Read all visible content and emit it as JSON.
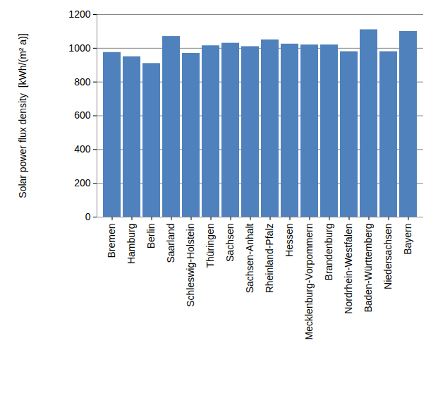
{
  "chart_data": {
    "type": "bar",
    "y_label": "Solar power flux density  [kWh/(m² a)]",
    "categories": [
      "Bremen",
      "Hamburg",
      "Berlin",
      "Saarland",
      "Schleswig-Holstein",
      "Thüringen",
      "Sachsen",
      "Sachsen-Anhalt",
      "Rheinland-Pfalz",
      "Hessen",
      "Mecklenburg-Vorpommern",
      "Brandenburg",
      "Nordrhein-Westfalen",
      "Baden-Württemberg",
      "Niedersachsen",
      "Bayern"
    ],
    "values": [
      975,
      950,
      910,
      1070,
      970,
      1015,
      1030,
      1010,
      1050,
      1025,
      1020,
      1020,
      980,
      1110,
      980,
      1100
    ],
    "color": "#4f81bd",
    "ylim": [
      0,
      1200
    ],
    "yticks": [
      0,
      200,
      400,
      600,
      800,
      1000,
      1200
    ],
    "grid": true
  }
}
